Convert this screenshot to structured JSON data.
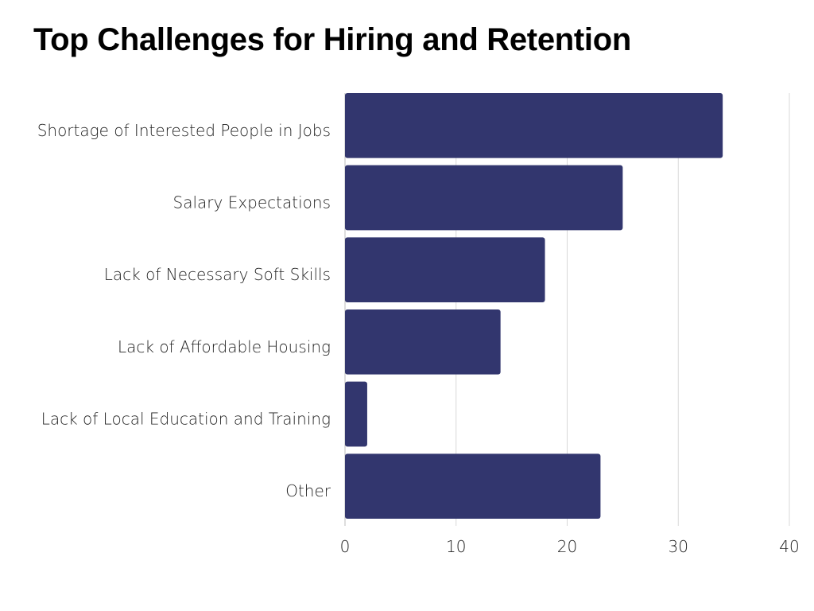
{
  "chart_data": {
    "type": "bar",
    "orientation": "horizontal",
    "title": "Top Challenges for Hiring and Retention",
    "categories": [
      "Shortage of Interested People in Jobs",
      "Salary Expectations",
      "Lack of Necessary Soft Skills",
      "Lack of Affordable Housing",
      "Lack of Local Education and Training",
      "Other"
    ],
    "values": [
      34,
      25,
      18,
      14,
      2,
      23
    ],
    "xlim": [
      0,
      40
    ],
    "xticks": [
      0,
      10,
      20,
      30,
      40
    ],
    "xlabel": "",
    "ylabel": "",
    "grid": "vertical",
    "legend": "none",
    "bar_color": "#32366e",
    "grid_color": "#d9d9d9",
    "label_color": "#1f1f1f"
  }
}
